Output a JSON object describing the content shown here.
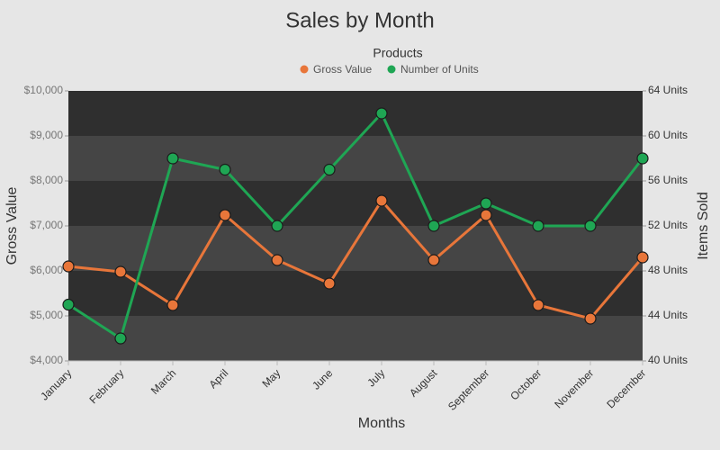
{
  "chart_data": {
    "type": "line",
    "title": "Sales by Month",
    "legend_title": "Products",
    "legend_position": "top",
    "x_label": "Months",
    "y_label": "Gross Value",
    "y2_label": "Items Sold",
    "categories": [
      "January",
      "February",
      "March",
      "April",
      "May",
      "June",
      "July",
      "August",
      "September",
      "October",
      "November",
      "December"
    ],
    "series": [
      {
        "name": "Gross Value",
        "color": "#e8763a",
        "values": [
          6100,
          5980,
          5240,
          7240,
          6240,
          5720,
          7560,
          6240,
          7240,
          5240,
          4940,
          6300
        ]
      },
      {
        "name": "Number of Units",
        "color": "#1fa654",
        "axis": "y2",
        "values": [
          45,
          42,
          58,
          57,
          52,
          57,
          62,
          52,
          54,
          52,
          52,
          58
        ]
      }
    ],
    "ylim": [
      4000,
      10000
    ],
    "yticks": [
      {
        "value": 4000,
        "label": "$4,000"
      },
      {
        "value": 5000,
        "label": "$5,000"
      },
      {
        "value": 6000,
        "label": "$6,000"
      },
      {
        "value": 7000,
        "label": "$7,000"
      },
      {
        "value": 8000,
        "label": "$8,000"
      },
      {
        "value": 9000,
        "label": "$9,000"
      },
      {
        "value": 10000,
        "label": "$10,000"
      }
    ],
    "y2lim": [
      40,
      64
    ],
    "y2ticks": [
      {
        "value": 40,
        "label": "40 Units"
      },
      {
        "value": 44,
        "label": "44 Units"
      },
      {
        "value": 48,
        "label": "48 Units"
      },
      {
        "value": 52,
        "label": "52 Units"
      },
      {
        "value": 56,
        "label": "56 Units"
      },
      {
        "value": 60,
        "label": "60 Units"
      },
      {
        "value": 64,
        "label": "64 Units"
      }
    ],
    "grid": true
  }
}
